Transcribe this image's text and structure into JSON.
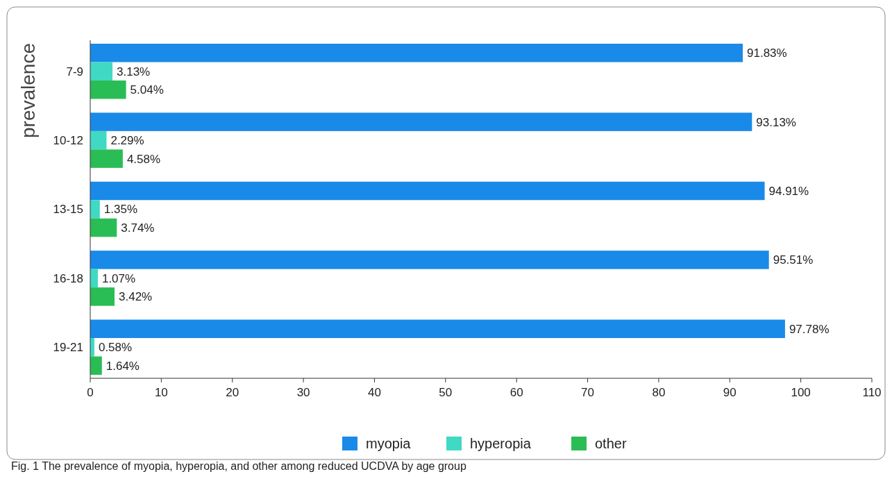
{
  "chart_data": {
    "type": "bar",
    "orientation": "horizontal",
    "ylabel": "prevalence",
    "categories": [
      "7-9",
      "10-12",
      "13-15",
      "16-18",
      "19-21"
    ],
    "series": [
      {
        "name": "myopia",
        "color": "#1a8ae8",
        "values": [
          91.83,
          93.13,
          94.91,
          95.51,
          97.78
        ],
        "value_labels": [
          "91.83%",
          "93.13%",
          "94.91%",
          "95.51%",
          "97.78%"
        ]
      },
      {
        "name": "hyperopia",
        "color": "#40d9c4",
        "values": [
          3.13,
          2.29,
          1.35,
          1.07,
          0.58
        ],
        "value_labels": [
          "3.13%",
          "2.29%",
          "1.35%",
          "1.07%",
          "0.58%"
        ]
      },
      {
        "name": "other",
        "color": "#2bbd55",
        "values": [
          5.04,
          4.58,
          3.74,
          3.42,
          1.64
        ],
        "value_labels": [
          "5.04%",
          "4.58%",
          "3.74%",
          "3.42%",
          "1.64%"
        ]
      }
    ],
    "xlim": [
      0,
      110
    ],
    "xticks": [
      0,
      10,
      20,
      30,
      40,
      50,
      60,
      70,
      80,
      90,
      100,
      110
    ],
    "legend": "bottom",
    "annotations": [
      "Fig. 1 The prevalence of myopia, hyperopia, and other among reduced UCDVA by age group"
    ]
  }
}
